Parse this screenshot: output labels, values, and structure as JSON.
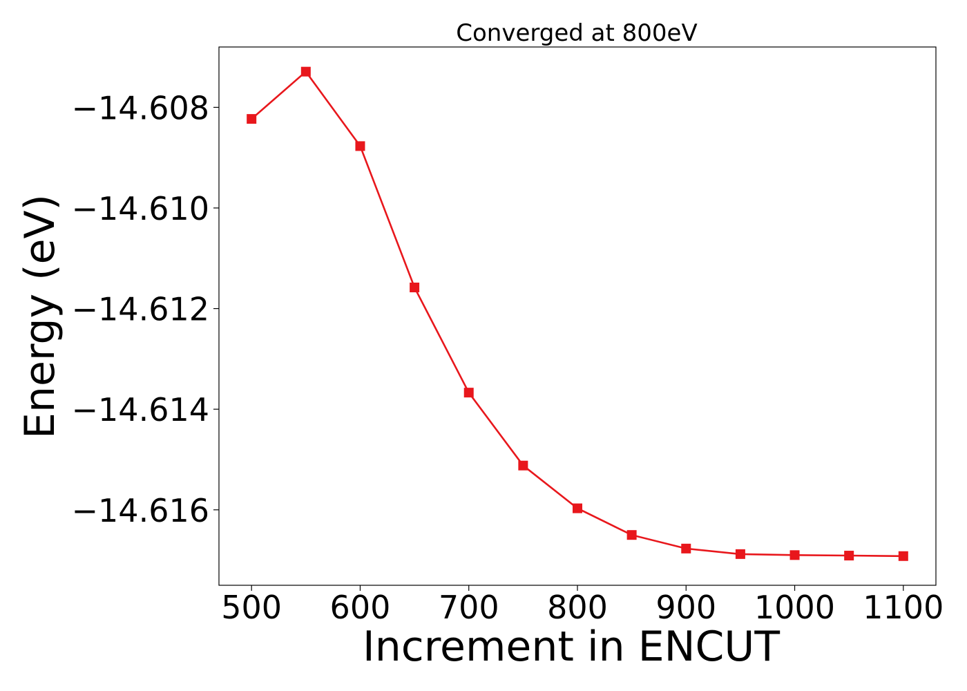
{
  "chart_data": {
    "type": "line",
    "title": "Converged at 800eV",
    "xlabel": "Increment in ENCUT",
    "ylabel": "Energy (eV)",
    "x": [
      500,
      550,
      600,
      650,
      700,
      750,
      800,
      850,
      900,
      950,
      1000,
      1050,
      1100
    ],
    "series": [
      {
        "values": [
          -14.60823,
          -14.60729,
          -14.60877,
          -14.61158,
          -14.61367,
          -14.61512,
          -14.61597,
          -14.6165,
          -14.61677,
          -14.61688,
          -14.6169,
          -14.61691,
          -14.61692
        ],
        "color": "#e8171c",
        "marker": "square"
      }
    ],
    "xticks": [
      500,
      600,
      700,
      800,
      900,
      1000,
      1100
    ],
    "xtick_labels": [
      "500",
      "600",
      "700",
      "800",
      "900",
      "1000",
      "1100"
    ],
    "yticks": [
      -14.608,
      -14.61,
      -14.612,
      -14.614,
      -14.616
    ],
    "ytick_labels": [
      "−14.608",
      "−14.610",
      "−14.612",
      "−14.614",
      "−14.616"
    ],
    "xlim": [
      470,
      1130
    ],
    "ylim": [
      -14.6175,
      -14.6068
    ],
    "grid": false,
    "legend": false
  }
}
